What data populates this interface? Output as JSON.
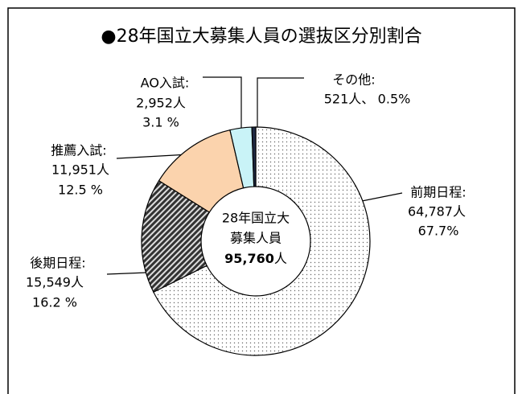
{
  "chart_data": {
    "type": "donut",
    "title": "●28年国立大募集人員の選抜区分別割合",
    "categories": [
      "前期日程:",
      "後期日程:",
      "推薦入試:",
      "AO入試:",
      "その他:"
    ],
    "values": [
      64787,
      15549,
      11951,
      2952,
      521
    ],
    "value_labels": [
      "64,787人",
      "15,549人",
      "11,951人",
      "2,952人",
      "521人、"
    ],
    "percent_labels": [
      "67.7%",
      "16.2 %",
      "12.5 %",
      "3.1 %",
      "0.5%"
    ],
    "colors": [
      "url(#dots)",
      "url(#hatch)",
      "#fbd3ad",
      "#c9f3f7",
      "#1f2a44"
    ],
    "center_text": [
      "28年国立大",
      "募集人員"
    ],
    "total": 95760,
    "total_label": "95,760",
    "total_unit": "人"
  }
}
